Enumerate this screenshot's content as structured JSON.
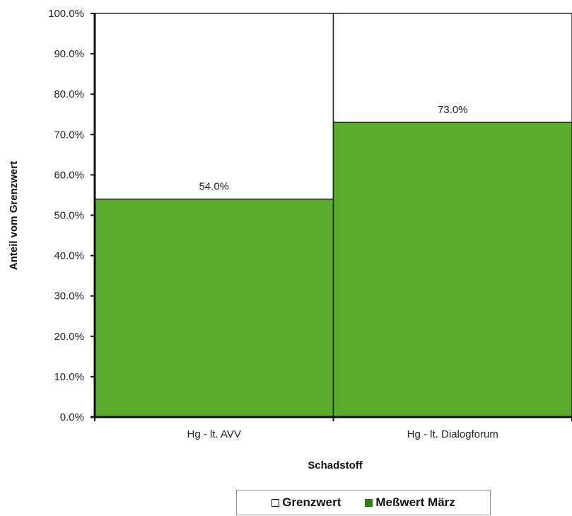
{
  "chart_data": {
    "type": "bar",
    "categories": [
      "Hg - lt. AVV",
      "Hg - lt. Dialogforum"
    ],
    "series": [
      {
        "name": "Grenzwert",
        "values": [
          100,
          100
        ],
        "color": "#ffffff"
      },
      {
        "name": "Meßwert März",
        "values": [
          54,
          73
        ],
        "color": "#5aaa2e"
      }
    ],
    "data_labels": [
      "54.0%",
      "73.0%"
    ],
    "yticks": [
      "0.0%",
      "10.0%",
      "20.0%",
      "30.0%",
      "40.0%",
      "50.0%",
      "60.0%",
      "70.0%",
      "80.0%",
      "90.0%",
      "100.0%"
    ],
    "ylim": [
      0,
      100
    ],
    "xlabel": "Schadstoff",
    "ylabel": "Anteil vom Grenzwert",
    "legend_position": "bottom",
    "grid": false
  }
}
